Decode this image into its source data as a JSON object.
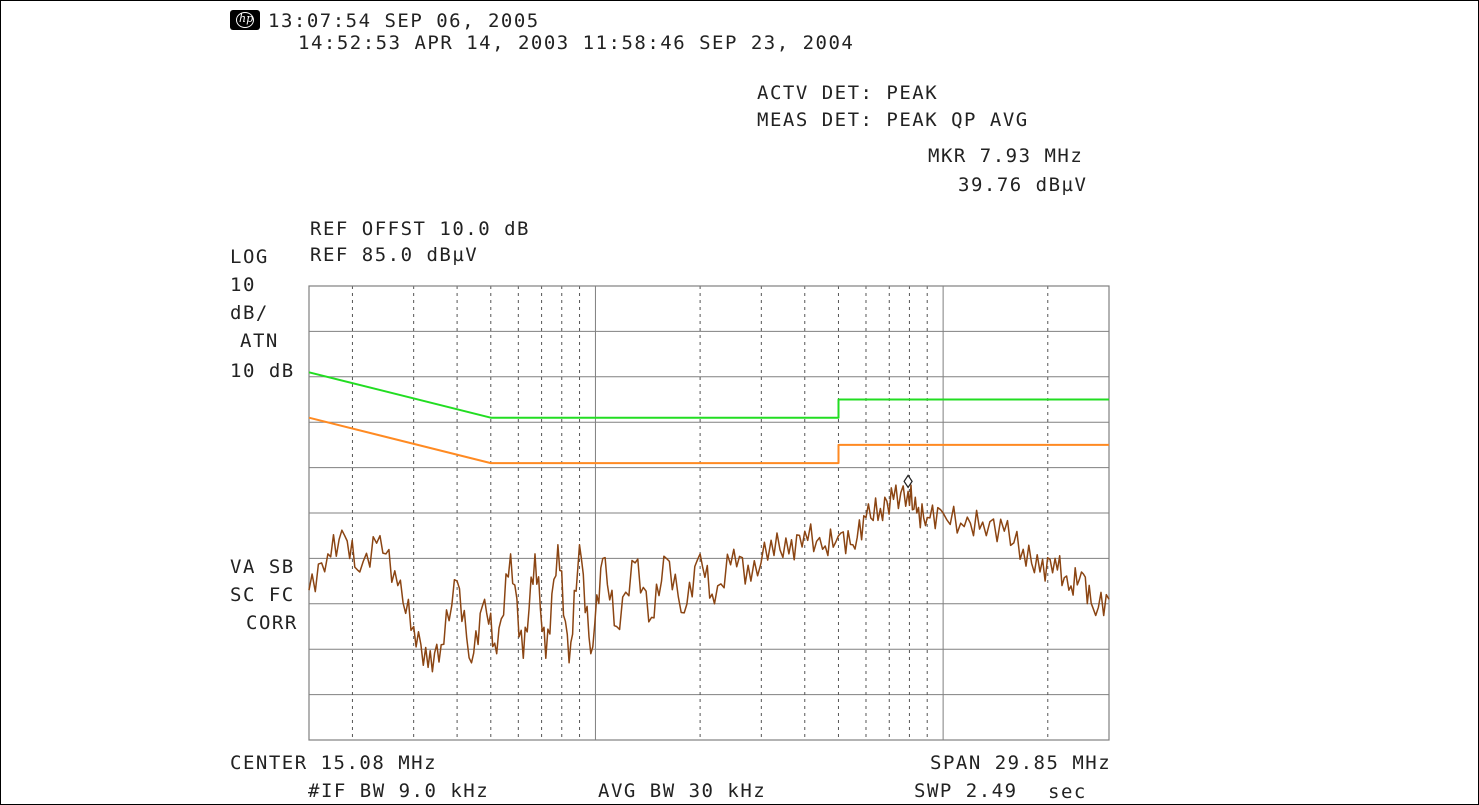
{
  "header": {
    "logo_text": "hp",
    "timestamp": "13:07:54 SEP 06, 2005",
    "timestamp_2": "14:52:53 APR 14, 2003 11:58:46 SEP 23, 2004",
    "actv_det": "ACTV DET: PEAK",
    "meas_det": "MEAS DET: PEAK QP AVG",
    "marker_freq": "MKR 7.93 MHz",
    "marker_level": "39.76 dBµV"
  },
  "settings": {
    "ref_offset": "REF OFFST 10.0 dB",
    "log_label": "LOG",
    "ref_level": "REF 85.0 dBµV",
    "scale_value": "10",
    "scale_unit": "dB/",
    "atn_label": "ATN",
    "atn_value": "10 dB",
    "flag_1": "VA SB",
    "flag_2": "SC FC",
    "flag_3": "CORR"
  },
  "footer": {
    "center": "CENTER 15.08 MHz",
    "span": "SPAN 29.85 MHz",
    "if_bw": "#IF BW 9.0 kHz",
    "avg_bw": "AVG BW 30 kHz",
    "sweep": "SWP 2.49",
    "sweep_unit": "sec"
  },
  "chart_data": {
    "type": "line",
    "title": "",
    "xlabel": "",
    "ylabel": "",
    "x_axis": {
      "type": "log",
      "unit": "MHz",
      "range": [
        0.15,
        30
      ]
    },
    "y_axis": {
      "unit": "dBµV",
      "range": [
        -15,
        85
      ],
      "ref_level": 85,
      "scale_per_div": 10
    },
    "grid": true,
    "colors": {
      "quasi_peak_limit": "#22dd22",
      "average_limit": "#ff8a22",
      "trace": "#8b4513",
      "grid": "#808080"
    },
    "series": [
      {
        "name": "",
        "color": "#22dd22",
        "points": [
          [
            0.15,
            66
          ],
          [
            0.5,
            56
          ],
          [
            5,
            56
          ],
          [
            5,
            60
          ],
          [
            30,
            60
          ]
        ]
      },
      {
        "name": "",
        "color": "#ff8a22",
        "points": [
          [
            0.15,
            56
          ],
          [
            0.5,
            46
          ],
          [
            5,
            46
          ],
          [
            5,
            50
          ],
          [
            30,
            50
          ]
        ]
      },
      {
        "name": "",
        "color": "#8b4513",
        "points": [
          [
            0.15,
            18
          ],
          [
            0.17,
            26
          ],
          [
            0.19,
            30
          ],
          [
            0.21,
            22
          ],
          [
            0.24,
            30
          ],
          [
            0.27,
            19
          ],
          [
            0.3,
            10
          ],
          [
            0.33,
            1
          ],
          [
            0.36,
            6
          ],
          [
            0.4,
            20
          ],
          [
            0.44,
            2
          ],
          [
            0.48,
            16
          ],
          [
            0.52,
            4
          ],
          [
            0.57,
            26
          ],
          [
            0.62,
            3
          ],
          [
            0.67,
            26
          ],
          [
            0.72,
            3
          ],
          [
            0.78,
            28
          ],
          [
            0.84,
            2
          ],
          [
            0.9,
            28
          ],
          [
            0.97,
            4
          ],
          [
            1.05,
            25
          ],
          [
            1.15,
            10
          ],
          [
            1.3,
            24
          ],
          [
            1.45,
            12
          ],
          [
            1.6,
            25
          ],
          [
            1.8,
            13
          ],
          [
            2.0,
            26
          ],
          [
            2.2,
            15
          ],
          [
            2.5,
            27
          ],
          [
            2.8,
            20
          ],
          [
            3.2,
            29
          ],
          [
            3.6,
            26
          ],
          [
            4.0,
            31
          ],
          [
            4.5,
            27
          ],
          [
            5.0,
            30
          ],
          [
            5.5,
            28
          ],
          [
            6.0,
            34
          ],
          [
            6.6,
            36
          ],
          [
            7.2,
            38
          ],
          [
            7.93,
            39.76
          ],
          [
            8.4,
            35
          ],
          [
            9.0,
            34
          ],
          [
            10,
            35
          ],
          [
            11.5,
            32
          ],
          [
            13,
            33
          ],
          [
            15,
            31
          ],
          [
            17,
            27
          ],
          [
            19,
            22
          ],
          [
            21,
            25
          ],
          [
            23,
            18
          ],
          [
            25,
            22
          ],
          [
            27,
            14
          ],
          [
            30,
            16
          ]
        ]
      }
    ],
    "marker": {
      "x": 7.93,
      "y": 39.76
    }
  }
}
